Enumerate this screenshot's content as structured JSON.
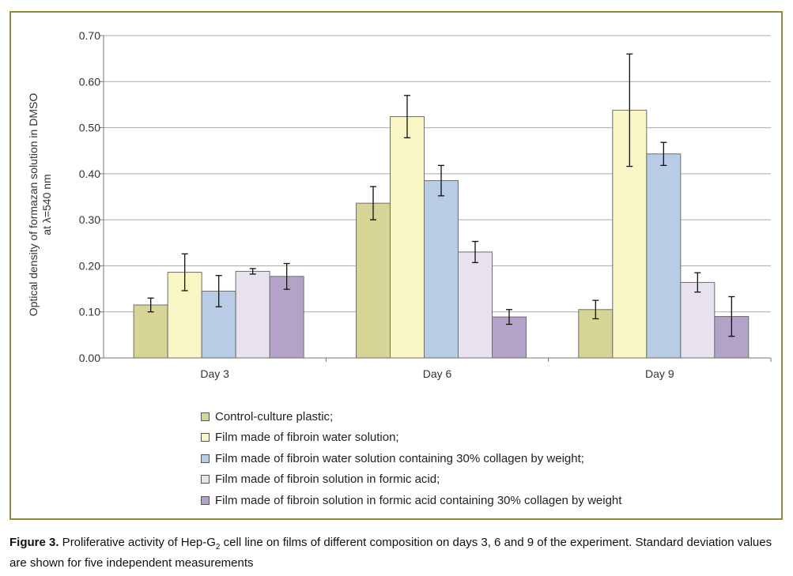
{
  "chart_data": {
    "type": "bar",
    "categories": [
      "Day 3",
      "Day 6",
      "Day 9"
    ],
    "series": [
      {
        "name": "Control-culture plastic;",
        "color": "#d6d596",
        "values": [
          0.115,
          0.336,
          0.105
        ],
        "errors": [
          0.015,
          0.036,
          0.02
        ]
      },
      {
        "name": "Film made of fibroin water solution;",
        "color": "#f8f6c4",
        "values": [
          0.186,
          0.524,
          0.538
        ],
        "errors": [
          0.04,
          0.046,
          0.122
        ]
      },
      {
        "name": "Film made of fibroin water solution containing 30% collagen by weight;",
        "color": "#b9cce6",
        "values": [
          0.145,
          0.385,
          0.443
        ],
        "errors": [
          0.034,
          0.033,
          0.025
        ]
      },
      {
        "name": "Film made of fibroin solution in formic acid;",
        "color": "#e8e2ef",
        "values": [
          0.188,
          0.23,
          0.164
        ],
        "errors": [
          0.006,
          0.023,
          0.021
        ]
      },
      {
        "name": "Film made of fibroin solution in formic acid containing 30% collagen by weight",
        "color": "#b4a3c9",
        "values": [
          0.177,
          0.089,
          0.09
        ],
        "errors": [
          0.028,
          0.016,
          0.043
        ]
      }
    ],
    "ylabel_line1": "Optical density of formazan solution in DMSO",
    "ylabel_line2": "at λ=540 nm",
    "ylim": [
      0,
      0.7
    ],
    "yticks": [
      "0.00",
      "0.10",
      "0.20",
      "0.30",
      "0.40",
      "0.50",
      "0.60",
      "0.70"
    ],
    "grid": true,
    "legend_position": "bottom"
  },
  "caption": {
    "label": "Figure 3.",
    "text_before_sub": " Proliferative activity of Hep-G",
    "subscript": "2",
    "text_after_sub": " cell line on films of different composition on days 3, 6 and 9 of the experiment. Standard deviation values are shown for five independent measurements"
  },
  "colors": {
    "frame": "#8f8a3c",
    "grid": "#a8a8a8",
    "axis": "#777777",
    "error_bar": "#111111"
  }
}
